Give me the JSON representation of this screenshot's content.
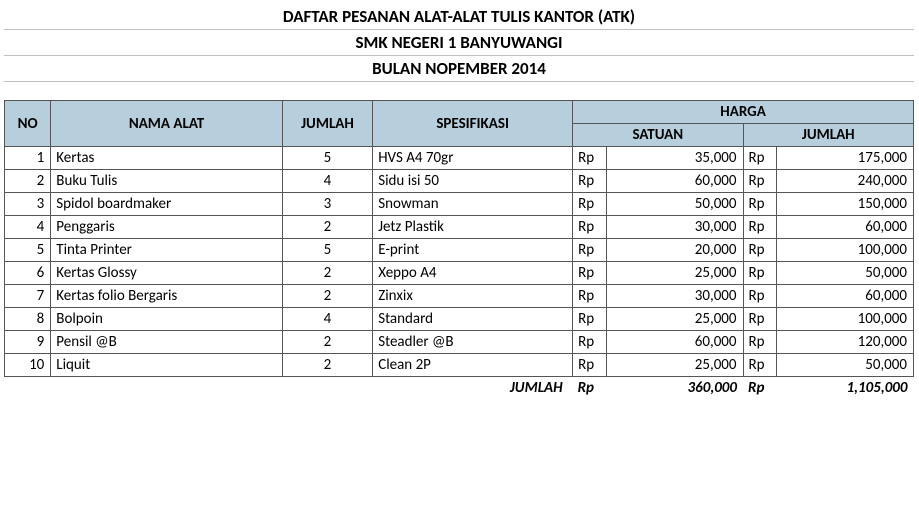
{
  "header": {
    "line1": "DAFTAR PESANAN ALAT-ALAT TULIS KANTOR (ATK)",
    "line2": "SMK NEGERI 1 BANYUWANGI",
    "line3": "BULAN NOPEMBER 2014"
  },
  "columns": {
    "no": "NO",
    "nama": "NAMA ALAT",
    "jumlah": "JUMLAH",
    "spesifikasi": "SPESIFIKASI",
    "harga": "HARGA",
    "satuan": "SATUAN",
    "jumlah_harga": "JUMLAH"
  },
  "currency": "Rp",
  "rows": [
    {
      "no": "1",
      "nama": "Kertas",
      "jumlah": "5",
      "spes": "HVS A4 70gr",
      "satuan": "35,000",
      "total": "175,000"
    },
    {
      "no": "2",
      "nama": "Buku Tulis",
      "jumlah": "4",
      "spes": "Sidu isi 50",
      "satuan": "60,000",
      "total": "240,000"
    },
    {
      "no": "3",
      "nama": "Spidol boardmaker",
      "jumlah": "3",
      "spes": "Snowman",
      "satuan": "50,000",
      "total": "150,000"
    },
    {
      "no": "4",
      "nama": "Penggaris",
      "jumlah": "2",
      "spes": "Jetz Plastik",
      "satuan": "30,000",
      "total": "60,000"
    },
    {
      "no": "5",
      "nama": "Tinta Printer",
      "jumlah": "5",
      "spes": "E-print",
      "satuan": "20,000",
      "total": "100,000"
    },
    {
      "no": "6",
      "nama": "Kertas Glossy",
      "jumlah": "2",
      "spes": "Xeppo A4",
      "satuan": "25,000",
      "total": "50,000"
    },
    {
      "no": "7",
      "nama": "Kertas folio Bergaris",
      "jumlah": "2",
      "spes": "Zinxix",
      "satuan": "30,000",
      "total": "60,000"
    },
    {
      "no": "8",
      "nama": "Bolpoin",
      "jumlah": "4",
      "spes": "Standard",
      "satuan": "25,000",
      "total": "100,000"
    },
    {
      "no": "9",
      "nama": "Pensil @B",
      "jumlah": "2",
      "spes": "Steadler @B",
      "satuan": "60,000",
      "total": "120,000"
    },
    {
      "no": "10",
      "nama": "Liquit",
      "jumlah": "2",
      "spes": "Clean 2P",
      "satuan": "25,000",
      "total": "50,000"
    }
  ],
  "footer": {
    "label": "JUMLAH",
    "satuan": "360,000",
    "total": "1,105,000"
  },
  "colors": {
    "header_bg": "#b7cfdc",
    "border": "#555555",
    "title_underline": "#bfbfbf",
    "background": "#ffffff"
  }
}
